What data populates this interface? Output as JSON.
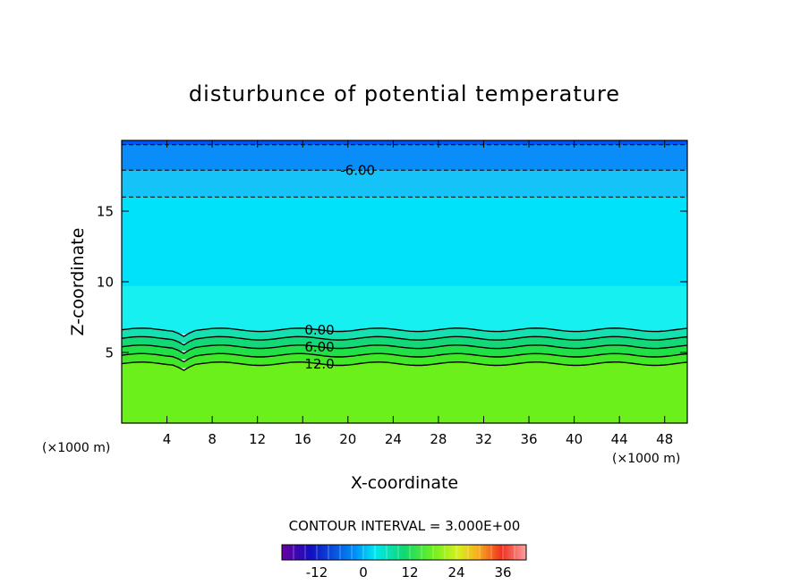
{
  "chart_data": {
    "type": "heatmap",
    "title": "disturbunce of potential temperature",
    "xlabel": "X-coordinate",
    "ylabel": "Z-coordinate",
    "x_unit_left": "(×1000 m)",
    "x_unit_right": "(×1000 m)",
    "xlim": [
      0,
      50
    ],
    "ylim": [
      0,
      20
    ],
    "x_ticks": [
      4,
      8,
      12,
      16,
      20,
      24,
      28,
      32,
      36,
      40,
      44,
      48
    ],
    "y_ticks": [
      5,
      10,
      15
    ],
    "contour_interval_text": "CONTOUR INTERVAL = 3.000E+00",
    "colorbar": {
      "range": [
        -21,
        42
      ],
      "ticks": [
        -12,
        0,
        12,
        24,
        36
      ]
    },
    "layers": [
      {
        "z_top": 20.0,
        "z_bottom": 19.7,
        "value": -9,
        "color": "#0055f0"
      },
      {
        "z_top": 19.7,
        "z_bottom": 17.9,
        "value": -6,
        "color": "#0a8df8"
      },
      {
        "z_top": 17.9,
        "z_bottom": 16.0,
        "value": -3,
        "color": "#16c3f8"
      },
      {
        "z_top": 16.0,
        "z_bottom": 9.7,
        "value": 0,
        "color": "#00e1fa"
      },
      {
        "z_top": 9.7,
        "z_bottom": 6.6,
        "value": 1,
        "color": "#16f0f0"
      },
      {
        "z_top": 6.6,
        "z_bottom": 6.0,
        "value": 3,
        "color": "#14e0b0"
      },
      {
        "z_top": 6.0,
        "z_bottom": 5.4,
        "value": 6,
        "color": "#12d878"
      },
      {
        "z_top": 5.4,
        "z_bottom": 4.8,
        "value": 9,
        "color": "#20e048"
      },
      {
        "z_top": 4.8,
        "z_bottom": 4.2,
        "value": 12,
        "color": "#40e828"
      },
      {
        "z_top": 4.2,
        "z_bottom": 0.0,
        "value": 15,
        "color": "#6cf01c"
      }
    ],
    "contours": [
      {
        "z": 19.7,
        "dashed": true,
        "label": ""
      },
      {
        "z": 17.9,
        "dashed": true,
        "label": "-6.00",
        "label_x": 19
      },
      {
        "z": 16.0,
        "dashed": true,
        "label": ""
      },
      {
        "z": 6.6,
        "dashed": false,
        "label": "0.00",
        "label_x": 16
      },
      {
        "z": 6.0,
        "dashed": false,
        "label": ""
      },
      {
        "z": 5.4,
        "dashed": false,
        "label": "6.00",
        "label_x": 16
      },
      {
        "z": 4.8,
        "dashed": false,
        "label": ""
      },
      {
        "z": 4.2,
        "dashed": false,
        "label": "12.0",
        "label_x": 16
      }
    ]
  }
}
